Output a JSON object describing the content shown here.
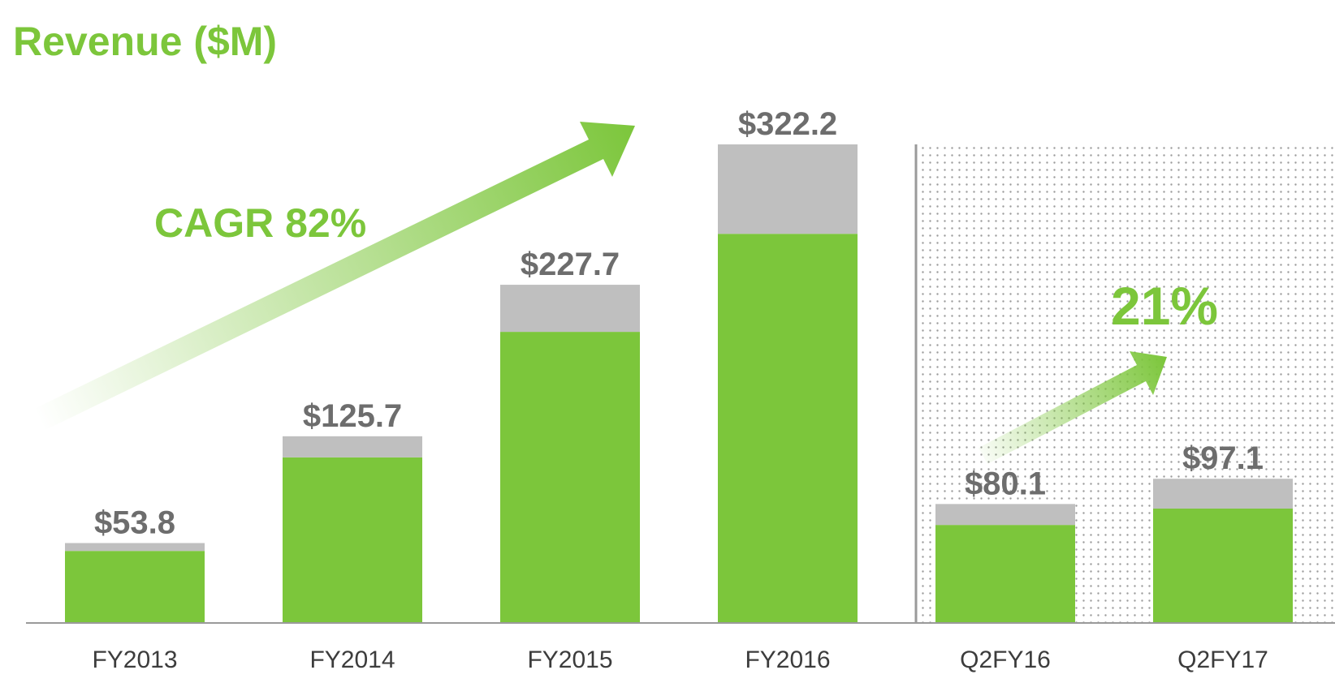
{
  "chart_data": {
    "type": "bar",
    "title": "Revenue ($M)",
    "categories": [
      "FY2013",
      "FY2014",
      "FY2015",
      "FY2016",
      "Q2FY16",
      "Q2FY17"
    ],
    "value_labels": [
      "$53.8",
      "$125.7",
      "$227.7",
      "$322.2",
      "$80.1",
      "$97.1"
    ],
    "totals": [
      53.8,
      125.7,
      227.7,
      322.2,
      80.1,
      97.1
    ],
    "series": [
      {
        "values": [
          48.5,
          111.5,
          196.0,
          262.0,
          66.0,
          77.0
        ],
        "color": "#7cc63b"
      },
      {
        "values": [
          5.3,
          14.2,
          31.7,
          60.2,
          14.1,
          20.1
        ],
        "color": "#bfbfbf"
      }
    ],
    "ylim": [
      0,
      340
    ],
    "grid": false,
    "annotations": [
      {
        "text": "CAGR 82%",
        "color": "#7cc63b"
      },
      {
        "text": "21%",
        "color": "#7cc63b"
      }
    ],
    "colors": {
      "title": "#7cc63b",
      "value_label": "#6d6d6d",
      "category_label": "#3c3c3c",
      "axis": "#9a9a9a",
      "arrow": "#7cc63b",
      "dotted_panel_dot": "#9c9c9c"
    }
  }
}
